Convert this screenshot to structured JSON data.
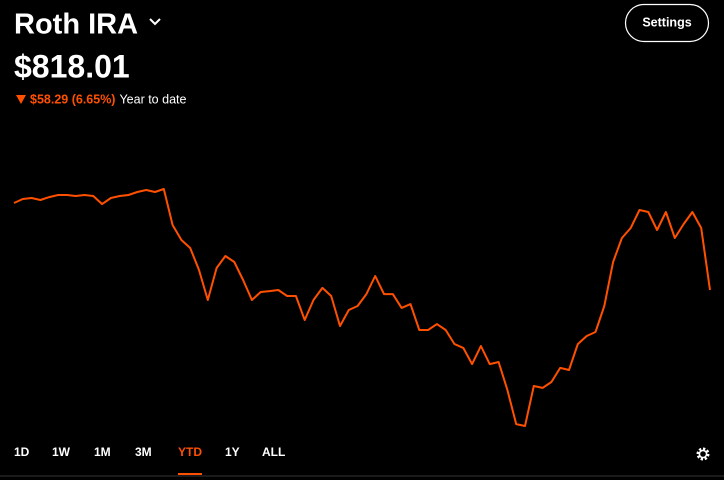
{
  "header": {
    "title": "Roth IRA",
    "balance": "$818.01",
    "change": "$58.29 (6.65%)",
    "period": "Year to date",
    "settings_button": "Settings"
  },
  "range_tabs": {
    "labels": [
      "1D",
      "1W",
      "1M",
      "3M",
      "YTD",
      "1Y",
      "ALL"
    ],
    "active": 4
  },
  "chart_data": {
    "type": "line",
    "color": "#ff5000",
    "values": [
      876.3,
      879.0,
      879.7,
      878.3,
      880.3,
      881.7,
      881.7,
      881.0,
      881.7,
      881.0,
      875.6,
      879.7,
      881.0,
      881.7,
      883.7,
      885.0,
      883.7,
      885.7,
      861.6,
      851.5,
      846.2,
      831.4,
      811.3,
      832.8,
      840.8,
      836.8,
      824.7,
      811.3,
      816.7,
      817.3,
      818.0,
      814.0,
      814.0,
      797.9,
      811.3,
      819.4,
      814.0,
      793.9,
      804.6,
      807.3,
      815.3,
      827.4,
      815.3,
      815.3,
      806.0,
      808.6,
      791.2,
      791.2,
      795.2,
      791.2,
      781.8,
      779.2,
      768.4,
      780.5,
      768.4,
      769.8,
      751.0,
      728.2,
      726.9,
      753.7,
      752.4,
      756.4,
      765.8,
      764.4,
      781.8,
      787.2,
      789.9,
      807.3,
      836.8,
      852.9,
      859.6,
      871.6,
      870.3,
      858.2,
      870.3,
      852.9,
      862.2,
      870.3,
      859.6,
      818.01
    ]
  }
}
